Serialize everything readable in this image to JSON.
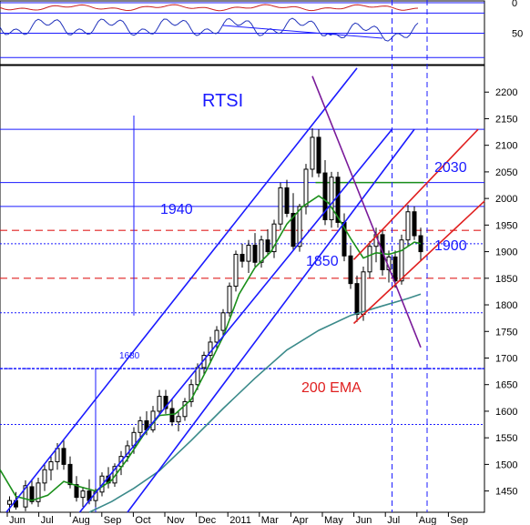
{
  "chart_data": [
    {
      "type": "line",
      "panel": "oscillator",
      "y_axis_side": "right",
      "ylim": [
        0,
        100
      ],
      "y_inverted": true,
      "yticks": [
        0,
        50
      ],
      "grid": true,
      "colors": {
        "series": "#2233bb",
        "signal": "#cc2222"
      },
      "guide_levels": [
        0,
        17,
        50,
        90
      ]
    },
    {
      "type": "candlestick",
      "title": "RTSI",
      "y_axis_side": "right",
      "ylim": [
        1410,
        2250
      ],
      "yticks": [
        1450,
        1500,
        1550,
        1600,
        1650,
        1700,
        1750,
        1800,
        1850,
        1900,
        1950,
        2000,
        2050,
        2100,
        2150,
        2200
      ],
      "x_labels": [
        "Jun",
        "Jul",
        "Aug",
        "Sep",
        "Oct",
        "Nov",
        "Dec",
        "2011",
        "Mar",
        "Apr",
        "May",
        "Jun",
        "Jul",
        "Aug",
        "Sep"
      ],
      "x_range_months": [
        0,
        15.2
      ],
      "grid": true,
      "ohlc": [
        {
          "m": 0.3,
          "o": 1425,
          "h": 1440,
          "l": 1410,
          "c": 1432
        },
        {
          "m": 0.5,
          "o": 1432,
          "h": 1448,
          "l": 1415,
          "c": 1420
        },
        {
          "m": 0.8,
          "o": 1420,
          "h": 1470,
          "l": 1412,
          "c": 1460
        },
        {
          "m": 1.0,
          "o": 1458,
          "h": 1472,
          "l": 1425,
          "c": 1430
        },
        {
          "m": 1.2,
          "o": 1430,
          "h": 1475,
          "l": 1420,
          "c": 1465
        },
        {
          "m": 1.4,
          "o": 1465,
          "h": 1500,
          "l": 1450,
          "c": 1490
        },
        {
          "m": 1.6,
          "o": 1490,
          "h": 1515,
          "l": 1470,
          "c": 1505
        },
        {
          "m": 1.8,
          "o": 1505,
          "h": 1540,
          "l": 1490,
          "c": 1530
        },
        {
          "m": 2.0,
          "o": 1530,
          "h": 1545,
          "l": 1490,
          "c": 1500
        },
        {
          "m": 2.2,
          "o": 1500,
          "h": 1515,
          "l": 1455,
          "c": 1462
        },
        {
          "m": 2.4,
          "o": 1462,
          "h": 1478,
          "l": 1430,
          "c": 1438
        },
        {
          "m": 2.6,
          "o": 1438,
          "h": 1458,
          "l": 1420,
          "c": 1450
        },
        {
          "m": 2.8,
          "o": 1450,
          "h": 1472,
          "l": 1425,
          "c": 1432
        },
        {
          "m": 3.0,
          "o": 1432,
          "h": 1455,
          "l": 1420,
          "c": 1448
        },
        {
          "m": 3.2,
          "o": 1448,
          "h": 1485,
          "l": 1440,
          "c": 1478
        },
        {
          "m": 3.4,
          "o": 1478,
          "h": 1495,
          "l": 1455,
          "c": 1465
        },
        {
          "m": 3.6,
          "o": 1465,
          "h": 1502,
          "l": 1458,
          "c": 1496
        },
        {
          "m": 3.8,
          "o": 1496,
          "h": 1525,
          "l": 1480,
          "c": 1515
        },
        {
          "m": 4.0,
          "o": 1515,
          "h": 1545,
          "l": 1505,
          "c": 1535
        },
        {
          "m": 4.2,
          "o": 1535,
          "h": 1570,
          "l": 1520,
          "c": 1560
        },
        {
          "m": 4.4,
          "o": 1560,
          "h": 1590,
          "l": 1545,
          "c": 1582
        },
        {
          "m": 4.6,
          "o": 1582,
          "h": 1600,
          "l": 1555,
          "c": 1565
        },
        {
          "m": 4.8,
          "o": 1565,
          "h": 1610,
          "l": 1560,
          "c": 1600
        },
        {
          "m": 5.0,
          "o": 1600,
          "h": 1640,
          "l": 1590,
          "c": 1628
        },
        {
          "m": 5.2,
          "o": 1628,
          "h": 1640,
          "l": 1595,
          "c": 1605
        },
        {
          "m": 5.4,
          "o": 1605,
          "h": 1622,
          "l": 1572,
          "c": 1580
        },
        {
          "m": 5.6,
          "o": 1580,
          "h": 1600,
          "l": 1562,
          "c": 1590
        },
        {
          "m": 5.8,
          "o": 1590,
          "h": 1625,
          "l": 1582,
          "c": 1618
        },
        {
          "m": 6.0,
          "o": 1618,
          "h": 1660,
          "l": 1608,
          "c": 1650
        },
        {
          "m": 6.2,
          "o": 1650,
          "h": 1690,
          "l": 1640,
          "c": 1682
        },
        {
          "m": 6.4,
          "o": 1682,
          "h": 1712,
          "l": 1670,
          "c": 1705
        },
        {
          "m": 6.6,
          "o": 1705,
          "h": 1740,
          "l": 1690,
          "c": 1730
        },
        {
          "m": 6.8,
          "o": 1730,
          "h": 1760,
          "l": 1715,
          "c": 1752
        },
        {
          "m": 7.0,
          "o": 1752,
          "h": 1792,
          "l": 1740,
          "c": 1785
        },
        {
          "m": 7.2,
          "o": 1785,
          "h": 1842,
          "l": 1778,
          "c": 1835
        },
        {
          "m": 7.4,
          "o": 1835,
          "h": 1902,
          "l": 1825,
          "c": 1895
        },
        {
          "m": 7.6,
          "o": 1895,
          "h": 1915,
          "l": 1870,
          "c": 1882
        },
        {
          "m": 7.8,
          "o": 1882,
          "h": 1922,
          "l": 1860,
          "c": 1912
        },
        {
          "m": 8.0,
          "o": 1912,
          "h": 1935,
          "l": 1872,
          "c": 1880
        },
        {
          "m": 8.2,
          "o": 1880,
          "h": 1930,
          "l": 1870,
          "c": 1922
        },
        {
          "m": 8.4,
          "o": 1922,
          "h": 1942,
          "l": 1895,
          "c": 1900
        },
        {
          "m": 8.6,
          "o": 1900,
          "h": 1960,
          "l": 1888,
          "c": 1952
        },
        {
          "m": 8.8,
          "o": 1952,
          "h": 2030,
          "l": 1940,
          "c": 2020
        },
        {
          "m": 9.0,
          "o": 2020,
          "h": 2035,
          "l": 1965,
          "c": 1972
        },
        {
          "m": 9.2,
          "o": 1972,
          "h": 2010,
          "l": 1902,
          "c": 1910
        },
        {
          "m": 9.4,
          "o": 1910,
          "h": 1990,
          "l": 1900,
          "c": 1985
        },
        {
          "m": 9.6,
          "o": 1985,
          "h": 2065,
          "l": 1970,
          "c": 2055
        },
        {
          "m": 9.8,
          "o": 2055,
          "h": 2132,
          "l": 2040,
          "c": 2115
        },
        {
          "m": 10.0,
          "o": 2115,
          "h": 2130,
          "l": 2040,
          "c": 2048
        },
        {
          "m": 10.2,
          "o": 2048,
          "h": 2072,
          "l": 1950,
          "c": 1960
        },
        {
          "m": 10.4,
          "o": 1960,
          "h": 2050,
          "l": 1945,
          "c": 2040
        },
        {
          "m": 10.6,
          "o": 2040,
          "h": 2050,
          "l": 1945,
          "c": 1955
        },
        {
          "m": 10.8,
          "o": 1955,
          "h": 1972,
          "l": 1882,
          "c": 1892
        },
        {
          "m": 11.0,
          "o": 1892,
          "h": 1912,
          "l": 1830,
          "c": 1840
        },
        {
          "m": 11.2,
          "o": 1840,
          "h": 1855,
          "l": 1768,
          "c": 1782
        },
        {
          "m": 11.4,
          "o": 1782,
          "h": 1872,
          "l": 1770,
          "c": 1862
        },
        {
          "m": 11.6,
          "o": 1862,
          "h": 1920,
          "l": 1850,
          "c": 1910
        },
        {
          "m": 11.8,
          "o": 1910,
          "h": 1945,
          "l": 1880,
          "c": 1932
        },
        {
          "m": 12.0,
          "o": 1932,
          "h": 1942,
          "l": 1855,
          "c": 1866
        },
        {
          "m": 12.2,
          "o": 1866,
          "h": 1902,
          "l": 1842,
          "c": 1890
        },
        {
          "m": 12.4,
          "o": 1890,
          "h": 1902,
          "l": 1832,
          "c": 1845
        },
        {
          "m": 12.6,
          "o": 1845,
          "h": 1932,
          "l": 1838,
          "c": 1922
        },
        {
          "m": 12.8,
          "o": 1922,
          "h": 1988,
          "l": 1910,
          "c": 1975
        },
        {
          "m": 13.0,
          "o": 1975,
          "h": 1985,
          "l": 1922,
          "c": 1930
        },
        {
          "m": 13.2,
          "o": 1930,
          "h": 1945,
          "l": 1882,
          "c": 1900
        }
      ],
      "moving_averages": [
        {
          "name": "green",
          "color": "#1a8f1a",
          "points": [
            [
              0,
              1490
            ],
            [
              0.5,
              1440
            ],
            [
              1.0,
              1432
            ],
            [
              1.5,
              1442
            ],
            [
              2.0,
              1468
            ],
            [
              2.5,
              1458
            ],
            [
              3.0,
              1450
            ],
            [
              3.5,
              1470
            ],
            [
              4.0,
              1510
            ],
            [
              4.5,
              1555
            ],
            [
              5.0,
              1592
            ],
            [
              5.5,
              1595
            ],
            [
              6.0,
              1622
            ],
            [
              6.5,
              1680
            ],
            [
              7.0,
              1740
            ],
            [
              7.5,
              1820
            ],
            [
              8.0,
              1870
            ],
            [
              8.5,
              1900
            ],
            [
              9.0,
              1952
            ],
            [
              9.5,
              1985
            ],
            [
              10.0,
              2005
            ],
            [
              10.3,
              1992
            ],
            [
              10.6,
              1965
            ],
            [
              11.0,
              1925
            ],
            [
              11.4,
              1888
            ],
            [
              11.8,
              1898
            ],
            [
              12.2,
              1895
            ],
            [
              12.6,
              1902
            ],
            [
              13.0,
              1918
            ],
            [
              13.2,
              1915
            ]
          ]
        },
        {
          "name": "200 EMA",
          "color": "#3b8a8a",
          "points": [
            [
              2.8,
              1410
            ],
            [
              3.5,
              1430
            ],
            [
              4.2,
              1455
            ],
            [
              5.0,
              1488
            ],
            [
              6.0,
              1545
            ],
            [
              7.0,
              1605
            ],
            [
              8.0,
              1662
            ],
            [
              9.0,
              1715
            ],
            [
              10.0,
              1752
            ],
            [
              11.0,
              1780
            ],
            [
              12.0,
              1798
            ],
            [
              12.8,
              1812
            ],
            [
              13.2,
              1820
            ]
          ]
        }
      ],
      "annotations": [
        {
          "text": "RTSI",
          "color": "#1a1aff"
        },
        {
          "text": "1940",
          "color": "#1a1aff"
        },
        {
          "text": "1850",
          "color": "#1a1aff"
        },
        {
          "text": "2030",
          "color": "#1a1aff"
        },
        {
          "text": "1900",
          "color": "#1a1aff"
        },
        {
          "text": "200 EMA",
          "color": "#e02020"
        },
        {
          "text": "1680",
          "color": "#1a1aff"
        }
      ]
    }
  ],
  "colors": {
    "channel_blue": "#1a1aff",
    "channel_red": "#e02020",
    "downtrend_purple": "#7a1a9a",
    "resistance_green": "#1a8f1a"
  }
}
